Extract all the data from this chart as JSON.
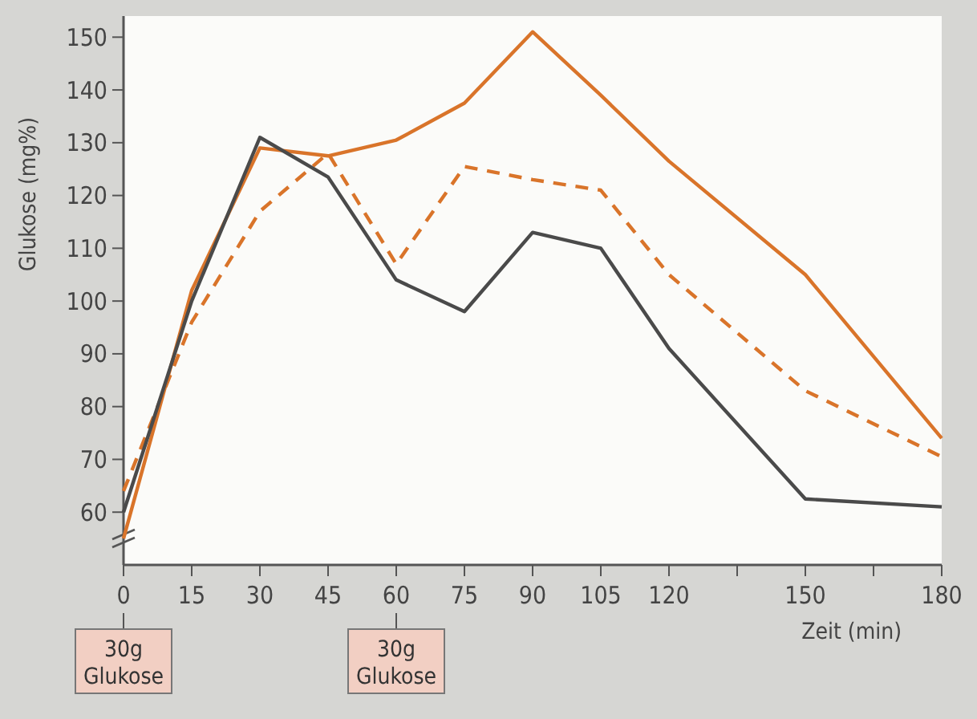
{
  "chart_data": {
    "type": "line",
    "xlabel": "Zeit (min)",
    "ylabel": "Glukose (mg%)",
    "x": [
      0,
      15,
      30,
      45,
      60,
      75,
      90,
      105,
      120,
      150,
      180
    ],
    "xlim": [
      0,
      180
    ],
    "xticks": [
      0,
      15,
      30,
      45,
      60,
      75,
      90,
      105,
      120,
      {
        "value": 135,
        "label": null
      },
      150,
      {
        "value": 165,
        "label": null
      },
      180
    ],
    "ylim": [
      50,
      154
    ],
    "yticks": [
      60,
      70,
      80,
      90,
      100,
      110,
      120,
      130,
      140,
      150
    ],
    "grid": false,
    "marker": "none",
    "series": [
      {
        "color": "#d9742a",
        "line_style": "solid",
        "values": [
          55,
          102,
          129,
          127.5,
          130.5,
          137.5,
          151,
          139,
          126.5,
          105,
          74
        ]
      },
      {
        "color": "#d9742a",
        "line_style": "dashed",
        "values": [
          64,
          96,
          117,
          128,
          107,
          125.5,
          123,
          121,
          105,
          83,
          70.5
        ]
      },
      {
        "color": "#4a4a4a",
        "line_style": "solid",
        "values": [
          60,
          100,
          131,
          123.5,
          104,
          98,
          113,
          110,
          91,
          62.5,
          61
        ]
      }
    ],
    "annotations": [
      {
        "text": "30g Glukose",
        "x": 0
      },
      {
        "text": "30g Glukose",
        "x": 60
      }
    ]
  }
}
